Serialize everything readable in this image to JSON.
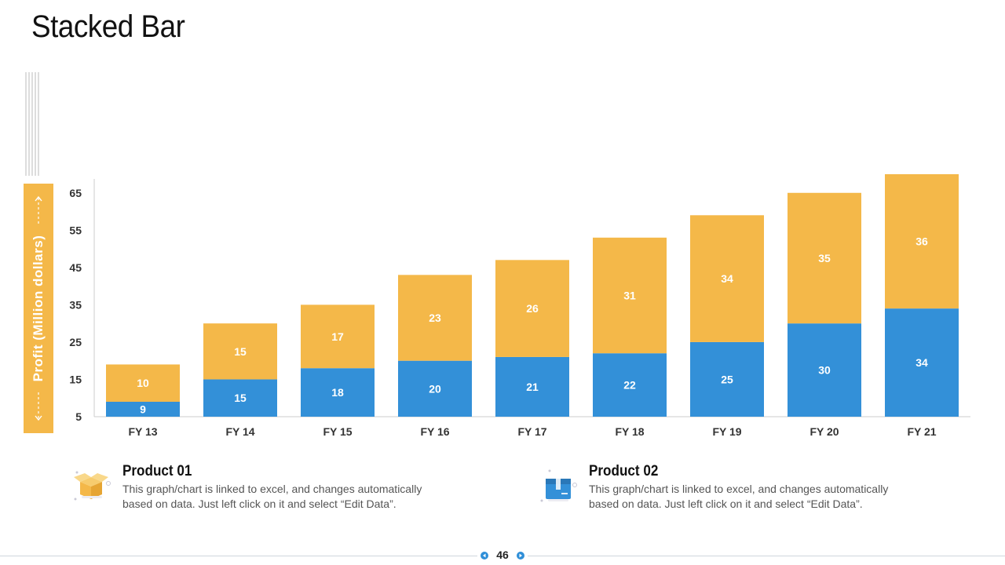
{
  "title": "Stacked Bar",
  "y_axis_label": "Profit  (Million dollars)",
  "chart_data": {
    "type": "bar",
    "stacked": true,
    "categories": [
      "FY 13",
      "FY 14",
      "FY 15",
      "FY 16",
      "FY 17",
      "FY 18",
      "FY 19",
      "FY 20",
      "FY 21"
    ],
    "series": [
      {
        "values": [
          9,
          15,
          18,
          20,
          21,
          22,
          25,
          30,
          34
        ],
        "color": "#3390d8"
      },
      {
        "values": [
          10,
          15,
          17,
          23,
          26,
          31,
          34,
          35,
          36
        ],
        "color": "#f4b849"
      }
    ],
    "y_ticks": [
      5,
      15,
      25,
      35,
      45,
      55,
      65
    ],
    "ylim": [
      5,
      70
    ],
    "ylabel": "Profit  (Million dollars)",
    "grid": false,
    "data_labels": true
  },
  "legend": [
    {
      "title": "Product 01",
      "description": "This graph/chart is linked to excel, and changes automatically based on data. Just left click on it and select “Edit Data”.",
      "icon": "open-box-icon",
      "color": "#f4b849"
    },
    {
      "title": "Product 02",
      "description": "This graph/chart is linked to excel, and changes automatically based on data. Just left click on it and select “Edit Data”.",
      "icon": "closed-box-icon",
      "color": "#3390d8"
    }
  ],
  "page_number": "46"
}
